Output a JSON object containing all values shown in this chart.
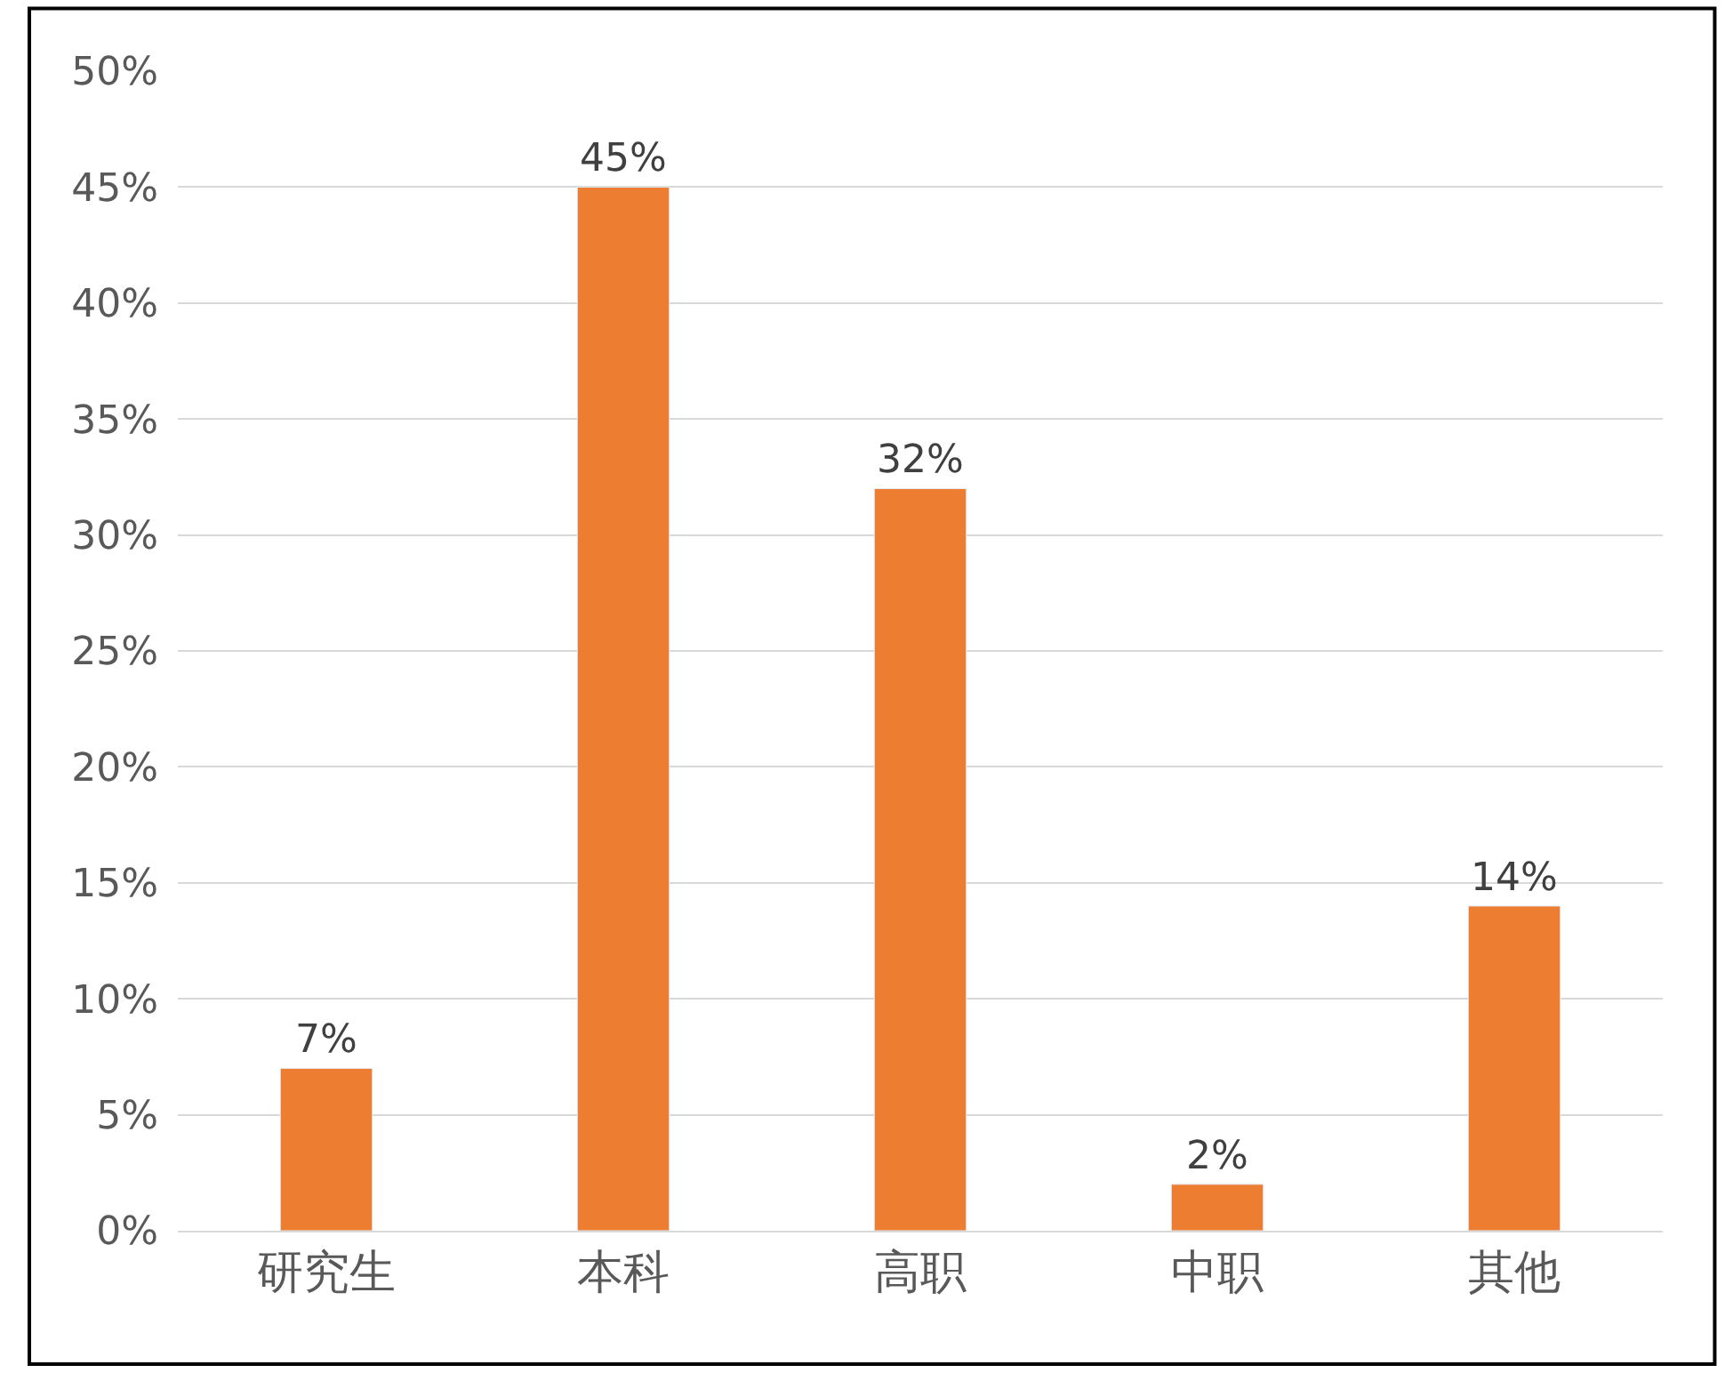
{
  "chart_data": {
    "type": "bar",
    "categories": [
      "研究生",
      "本科",
      "高职",
      "中职",
      "其他"
    ],
    "values": [
      7,
      45,
      32,
      2,
      14
    ],
    "value_labels": [
      "7%",
      "45%",
      "32%",
      "2%",
      "14%"
    ],
    "color": "#ed7d31",
    "ylim": [
      0,
      50
    ],
    "yticks": [
      {
        "value": 0,
        "label": "0%"
      },
      {
        "value": 5,
        "label": "5%"
      },
      {
        "value": 10,
        "label": "10%"
      },
      {
        "value": 15,
        "label": "15%"
      },
      {
        "value": 20,
        "label": "20%"
      },
      {
        "value": 25,
        "label": "25%"
      },
      {
        "value": 30,
        "label": "30%"
      },
      {
        "value": 35,
        "label": "35%"
      },
      {
        "value": 40,
        "label": "40%"
      },
      {
        "value": 45,
        "label": "45%"
      },
      {
        "value": 50,
        "label": "50%"
      }
    ],
    "grid": "y",
    "legend": false
  }
}
